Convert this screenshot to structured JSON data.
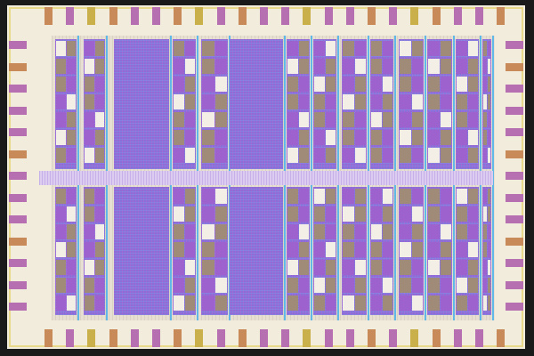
{
  "colors": {
    "background": "#1a1a1a",
    "die": "#f2ecdc",
    "seal_ring": "#e9d98a",
    "pad_magenta": "#b66fb0",
    "pad_orange": "#c98a5a",
    "pad_yellow": "#c9b04a",
    "logic_fill": "#8a6fd8",
    "power_strap": "#5fb8e8",
    "routing_channel": "#dccdf0"
  }
}
